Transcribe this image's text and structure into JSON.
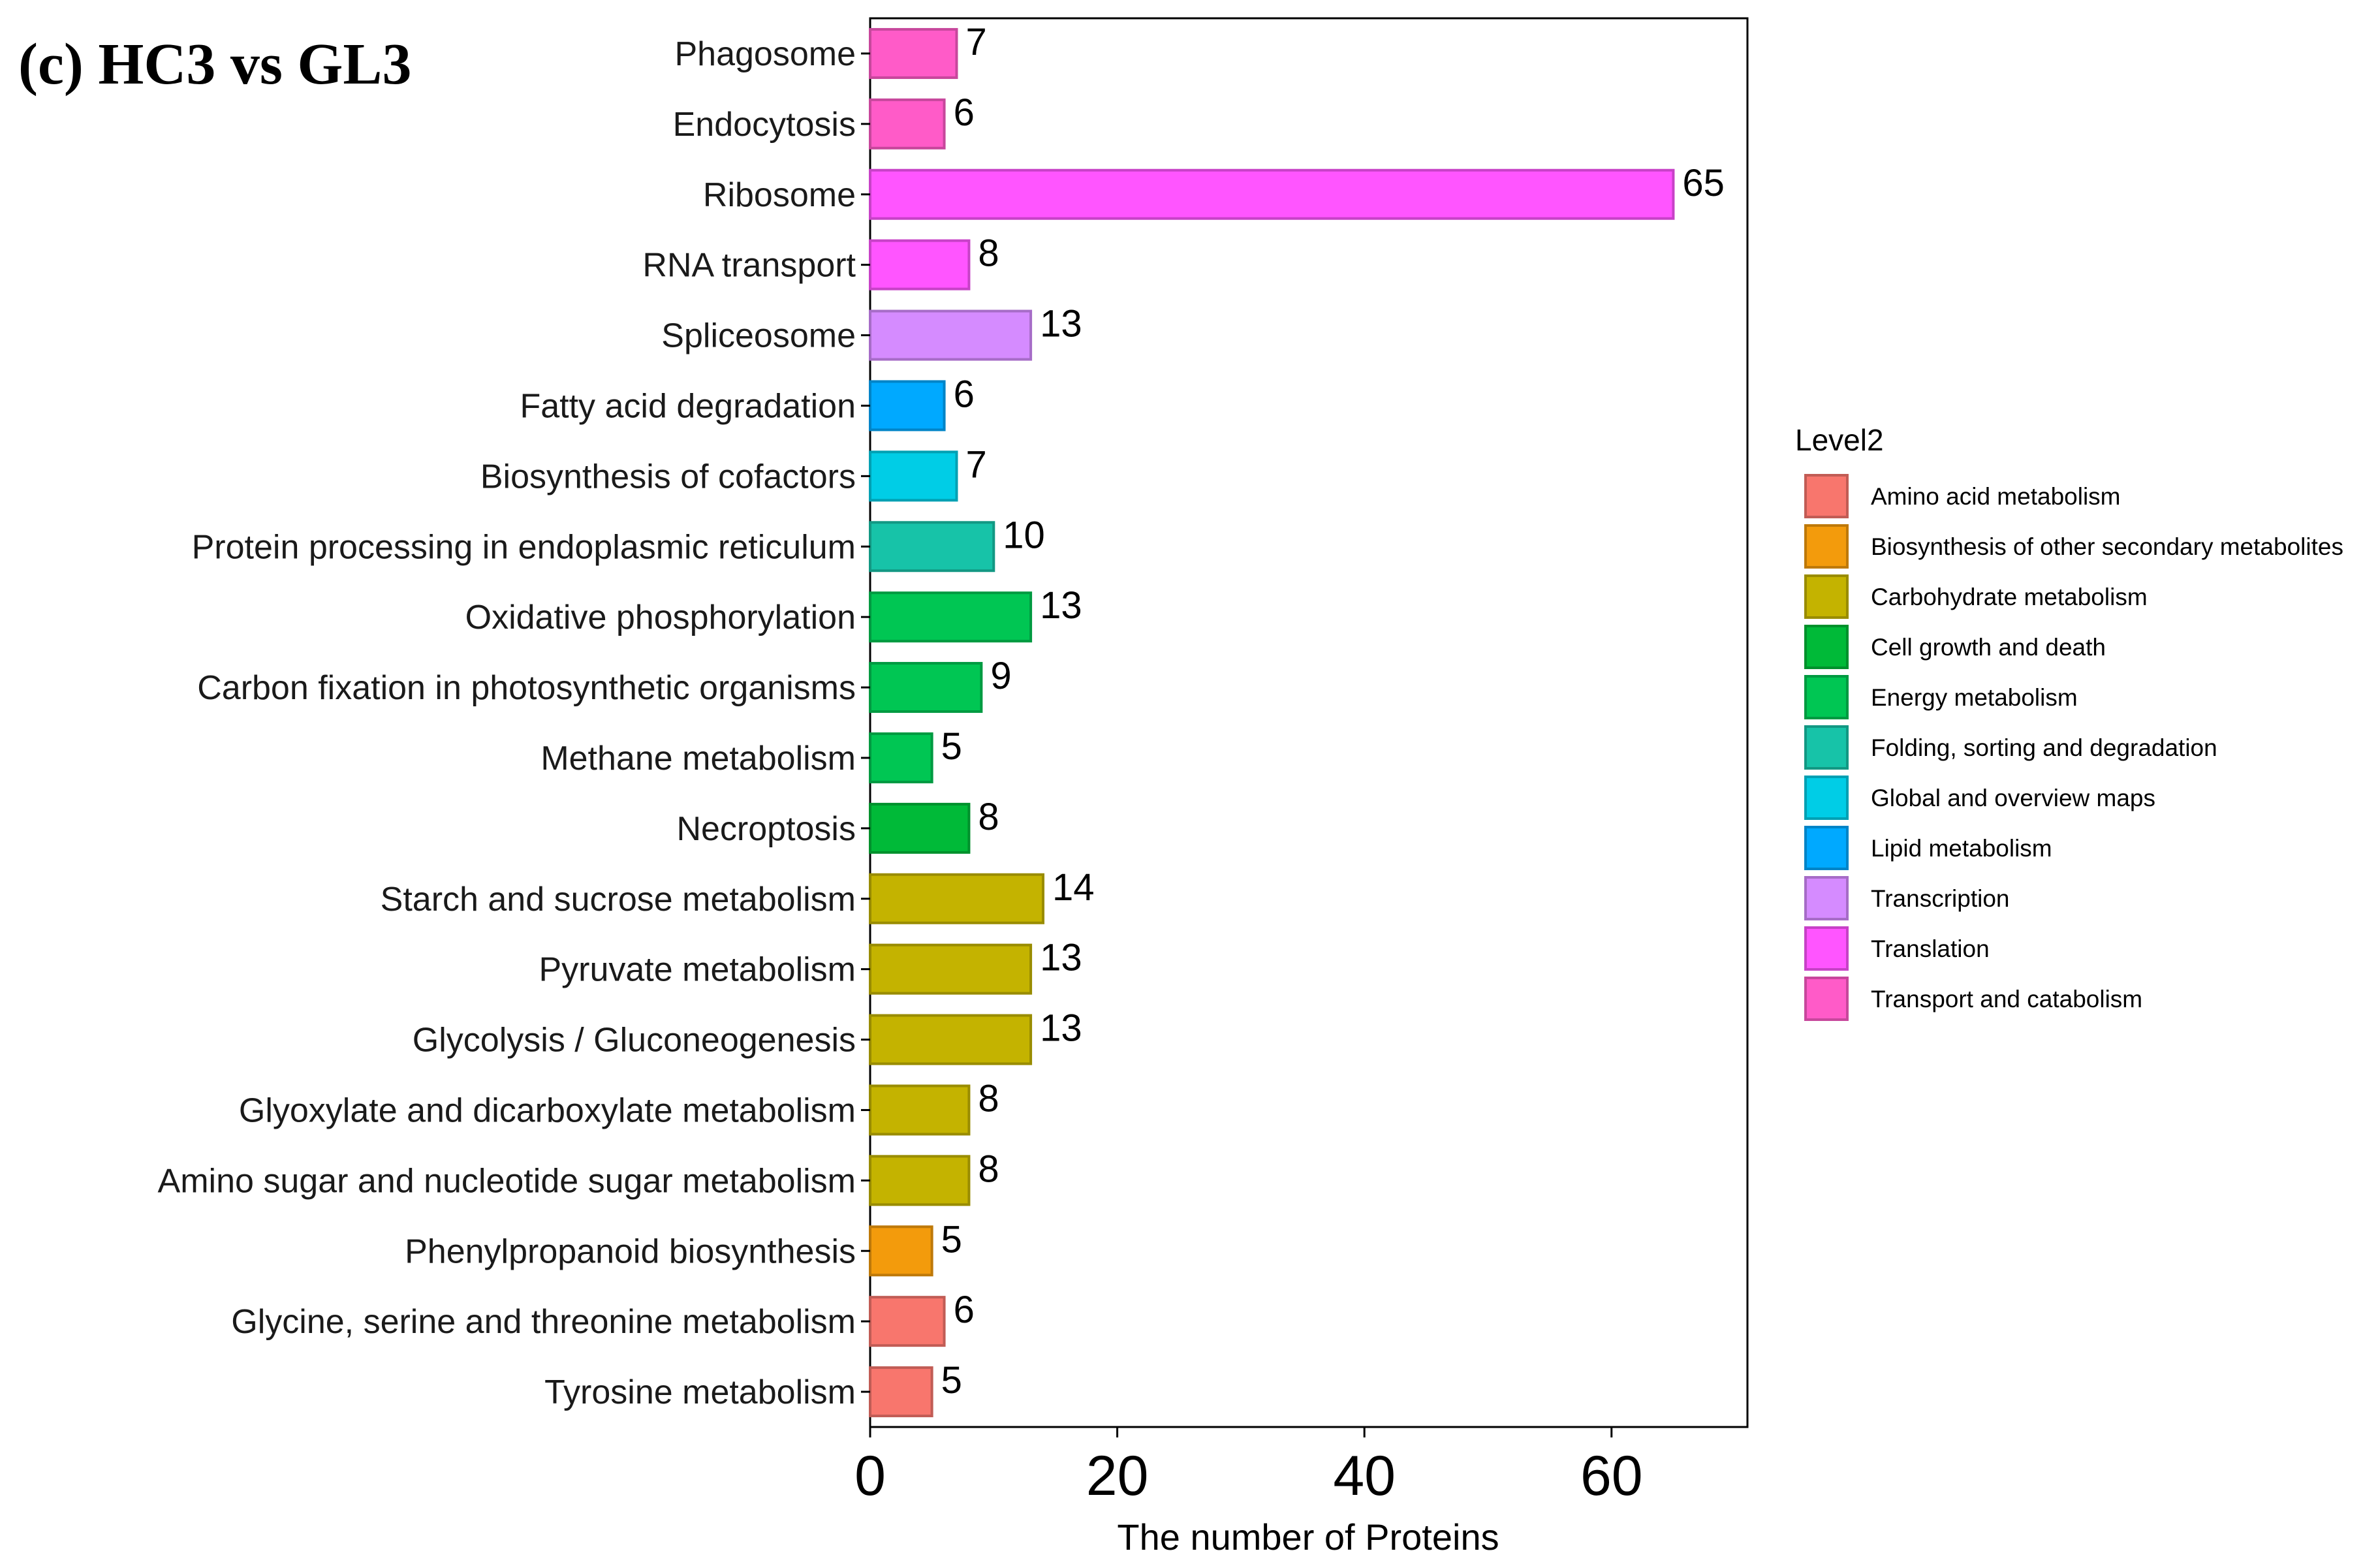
{
  "panel_label": "(c) HC3 vs GL3",
  "chart_data": {
    "type": "bar",
    "orientation": "horizontal",
    "title": "(c) HC3 vs GL3",
    "xlabel": "The number of Proteins",
    "ylabel": "",
    "xlim": [
      0,
      71
    ],
    "x_ticks": [
      0,
      20,
      40,
      60
    ],
    "grid": false,
    "legend_title": "Level2",
    "legend_position": "right",
    "legend": [
      {
        "name": "Amino acid metabolism",
        "color": "#F8766D"
      },
      {
        "name": "Biosynthesis of other secondary metabolites",
        "color": "#F39B0C"
      },
      {
        "name": "Carbohydrate metabolism",
        "color": "#C4B300"
      },
      {
        "name": "Cell growth and death",
        "color": "#00BA38"
      },
      {
        "name": "Energy metabolism",
        "color": "#00C653"
      },
      {
        "name": "Folding, sorting and degradation",
        "color": "#17C3A8"
      },
      {
        "name": "Global and overview maps",
        "color": "#00CDE6"
      },
      {
        "name": "Lipid metabolism",
        "color": "#00A9FF"
      },
      {
        "name": "Transcription",
        "color": "#D58BFF"
      },
      {
        "name": "Translation",
        "color": "#FF55FF"
      },
      {
        "name": "Transport and catabolism",
        "color": "#FF5BC8"
      }
    ],
    "categories": [
      "Phagosome",
      "Endocytosis",
      "Ribosome",
      "RNA transport",
      "Spliceosome",
      "Fatty acid degradation",
      "Biosynthesis of cofactors",
      "Protein processing in endoplasmic reticulum",
      "Oxidative phosphorylation",
      "Carbon fixation in photosynthetic organisms",
      "Methane metabolism",
      "Necroptosis",
      "Starch and sucrose metabolism",
      "Pyruvate metabolism",
      "Glycolysis / Gluconeogenesis",
      "Glyoxylate and dicarboxylate metabolism",
      "Amino sugar and nucleotide sugar metabolism",
      "Phenylpropanoid biosynthesis",
      "Glycine, serine and threonine metabolism",
      "Tyrosine metabolism"
    ],
    "values": [
      7,
      6,
      65,
      8,
      13,
      6,
      7,
      10,
      13,
      9,
      5,
      8,
      14,
      13,
      13,
      8,
      8,
      5,
      6,
      5
    ],
    "value_labels": [
      "7",
      "6",
      "65",
      "8",
      "13",
      "6",
      "7",
      "10",
      "13",
      "9",
      "5",
      "8",
      "14",
      "13",
      "13",
      "8",
      "8",
      "5",
      "6",
      "5"
    ],
    "groups": [
      "Transport and catabolism",
      "Transport and catabolism",
      "Translation",
      "Translation",
      "Transcription",
      "Lipid metabolism",
      "Global and overview maps",
      "Folding, sorting and degradation",
      "Energy metabolism",
      "Energy metabolism",
      "Energy metabolism",
      "Cell growth and death",
      "Carbohydrate metabolism",
      "Carbohydrate metabolism",
      "Carbohydrate metabolism",
      "Carbohydrate metabolism",
      "Carbohydrate metabolism",
      "Biosynthesis of other secondary metabolites",
      "Amino acid metabolism",
      "Amino acid metabolism"
    ]
  }
}
